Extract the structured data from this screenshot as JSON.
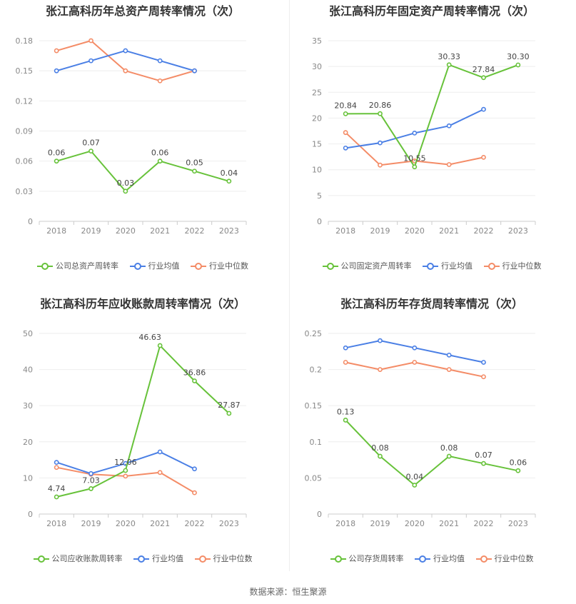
{
  "source": "数据来源：恒生聚源",
  "colors": {
    "company": "#67c23a",
    "avg": "#4a7fe5",
    "median": "#f48c67"
  },
  "legend_labels": {
    "avg": "行业均值",
    "median": "行业中位数"
  },
  "chart_data": [
    {
      "type": "line",
      "title": "张江高科历年总资产周转率情况（次）",
      "categories": [
        "2018",
        "2019",
        "2020",
        "2021",
        "2022",
        "2023"
      ],
      "yticks": [
        "0",
        "0.03",
        "0.06",
        "0.09",
        "0.12",
        "0.15",
        "0.18"
      ],
      "ylim": [
        0,
        0.18
      ],
      "series": [
        {
          "name": "公司总资产周转率",
          "key": "company",
          "values": [
            0.06,
            0.07,
            0.03,
            0.06,
            0.05,
            0.04
          ],
          "labels": [
            "0.06",
            "0.07",
            "0.03",
            "0.06",
            "0.05",
            "0.04"
          ]
        },
        {
          "name": "行业均值",
          "key": "avg",
          "values": [
            0.15,
            0.16,
            0.17,
            0.16,
            0.15,
            null
          ]
        },
        {
          "name": "行业中位数",
          "key": "median",
          "values": [
            0.17,
            0.18,
            0.15,
            0.14,
            0.15,
            null
          ]
        }
      ]
    },
    {
      "type": "line",
      "title": "张江高科历年固定资产周转率情况（次）",
      "categories": [
        "2018",
        "2019",
        "2020",
        "2021",
        "2022",
        "2023"
      ],
      "yticks": [
        "0",
        "5",
        "10",
        "15",
        "20",
        "25",
        "30",
        "35"
      ],
      "ylim": [
        0,
        35
      ],
      "series": [
        {
          "name": "公司固定资产周转率",
          "key": "company",
          "values": [
            20.84,
            20.86,
            10.55,
            30.33,
            27.84,
            30.3
          ],
          "labels": [
            "20.84",
            "20.86",
            "10.55",
            "30.33",
            "27.84",
            "30.30"
          ]
        },
        {
          "name": "行业均值",
          "key": "avg",
          "values": [
            14.2,
            15.2,
            17.1,
            18.5,
            21.7,
            null
          ]
        },
        {
          "name": "行业中位数",
          "key": "median",
          "values": [
            17.2,
            10.9,
            11.7,
            11.0,
            12.4,
            null
          ]
        }
      ]
    },
    {
      "type": "line",
      "title": "张江高科历年应收账款周转率情况（次）",
      "categories": [
        "2018",
        "2019",
        "2020",
        "2021",
        "2022",
        "2023"
      ],
      "yticks": [
        "0",
        "10",
        "20",
        "30",
        "40",
        "50"
      ],
      "ylim": [
        0,
        50
      ],
      "series": [
        {
          "name": "公司应收账款周转率",
          "key": "company",
          "values": [
            4.74,
            7.03,
            12.06,
            46.63,
            36.86,
            27.87
          ],
          "labels": [
            "4.74",
            "7.03",
            "12.06",
            "46.63",
            "36.86",
            "27.87"
          ]
        },
        {
          "name": "行业均值",
          "key": "avg",
          "values": [
            14.3,
            11.2,
            14.0,
            17.2,
            12.5,
            null
          ]
        },
        {
          "name": "行业中位数",
          "key": "median",
          "values": [
            12.9,
            11.0,
            10.5,
            11.5,
            5.9,
            null
          ]
        }
      ]
    },
    {
      "type": "line",
      "title": "张江高科历年存货周转率情况（次）",
      "categories": [
        "2018",
        "2019",
        "2020",
        "2021",
        "2022",
        "2023"
      ],
      "yticks": [
        "0",
        "0.05",
        "0.1",
        "0.15",
        "0.2",
        "0.25"
      ],
      "ylim": [
        0,
        0.25
      ],
      "series": [
        {
          "name": "公司存货周转率",
          "key": "company",
          "values": [
            0.13,
            0.08,
            0.04,
            0.08,
            0.07,
            0.06
          ],
          "labels": [
            "0.13",
            "0.08",
            "0.04",
            "0.08",
            "0.07",
            "0.06"
          ]
        },
        {
          "name": "行业均值",
          "key": "avg",
          "values": [
            0.23,
            0.24,
            0.23,
            0.22,
            0.21,
            null
          ]
        },
        {
          "name": "行业中位数",
          "key": "median",
          "values": [
            0.21,
            0.2,
            0.21,
            0.2,
            0.19,
            null
          ]
        }
      ]
    }
  ]
}
